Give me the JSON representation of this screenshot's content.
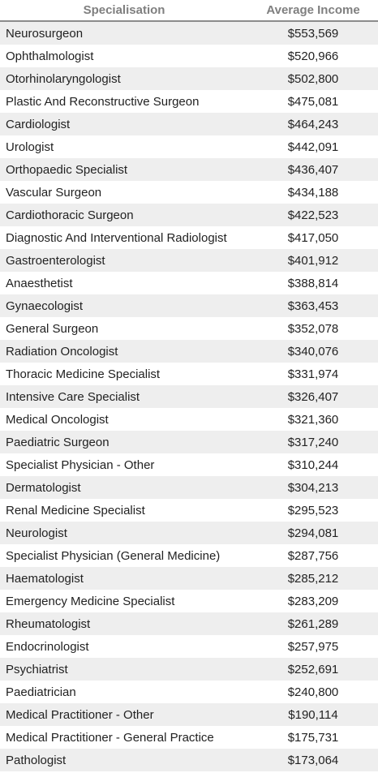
{
  "table": {
    "headers": {
      "specialisation": "Specialisation",
      "income": "Average Income"
    },
    "rows": [
      {
        "specialisation": "Neurosurgeon",
        "income": "$553,569"
      },
      {
        "specialisation": "Ophthalmologist",
        "income": "$520,966"
      },
      {
        "specialisation": "Otorhinolaryngologist",
        "income": "$502,800"
      },
      {
        "specialisation": "Plastic And Reconstructive Surgeon",
        "income": "$475,081"
      },
      {
        "specialisation": "Cardiologist",
        "income": "$464,243"
      },
      {
        "specialisation": "Urologist",
        "income": "$442,091"
      },
      {
        "specialisation": "Orthopaedic Specialist",
        "income": "$436,407"
      },
      {
        "specialisation": "Vascular Surgeon",
        "income": "$434,188"
      },
      {
        "specialisation": "Cardiothoracic Surgeon",
        "income": "$422,523"
      },
      {
        "specialisation": "Diagnostic And Interventional Radiologist",
        "income": "$417,050"
      },
      {
        "specialisation": "Gastroenterologist",
        "income": "$401,912"
      },
      {
        "specialisation": "Anaesthetist",
        "income": "$388,814"
      },
      {
        "specialisation": "Gynaecologist",
        "income": "$363,453"
      },
      {
        "specialisation": "General Surgeon",
        "income": "$352,078"
      },
      {
        "specialisation": "Radiation Oncologist",
        "income": "$340,076"
      },
      {
        "specialisation": "Thoracic Medicine Specialist",
        "income": "$331,974"
      },
      {
        "specialisation": "Intensive Care Specialist",
        "income": "$326,407"
      },
      {
        "specialisation": "Medical Oncologist",
        "income": "$321,360"
      },
      {
        "specialisation": "Paediatric Surgeon",
        "income": "$317,240"
      },
      {
        "specialisation": "Specialist Physician - Other",
        "income": "$310,244"
      },
      {
        "specialisation": "Dermatologist",
        "income": "$304,213"
      },
      {
        "specialisation": "Renal Medicine Specialist",
        "income": "$295,523"
      },
      {
        "specialisation": "Neurologist",
        "income": "$294,081"
      },
      {
        "specialisation": "Specialist Physician (General Medicine)",
        "income": "$287,756"
      },
      {
        "specialisation": "Haematologist",
        "income": "$285,212"
      },
      {
        "specialisation": "Emergency Medicine Specialist",
        "income": "$283,209"
      },
      {
        "specialisation": "Rheumatologist",
        "income": "$261,289"
      },
      {
        "specialisation": "Endocrinologist",
        "income": "$257,975"
      },
      {
        "specialisation": "Psychiatrist",
        "income": "$252,691"
      },
      {
        "specialisation": "Paediatrician",
        "income": "$240,800"
      },
      {
        "specialisation": "Medical Practitioner - Other",
        "income": "$190,114"
      },
      {
        "specialisation": "Medical Practitioner - General Practice",
        "income": "$175,731"
      },
      {
        "specialisation": "Pathologist",
        "income": "$173,064"
      }
    ]
  }
}
